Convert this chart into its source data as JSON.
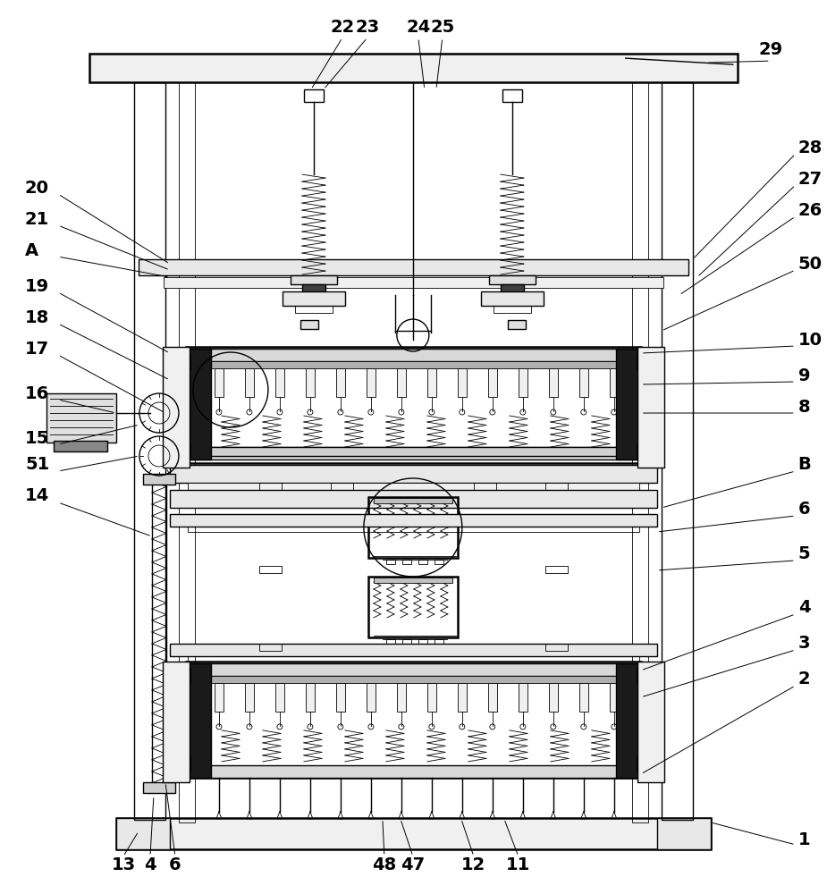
{
  "bg_color": "#ffffff",
  "lc": "#000000",
  "lw": 1.0,
  "tlw": 0.6,
  "thw": 1.8,
  "fw": 9.25,
  "fh": 10.0,
  "dpi": 100,
  "fs": 14
}
